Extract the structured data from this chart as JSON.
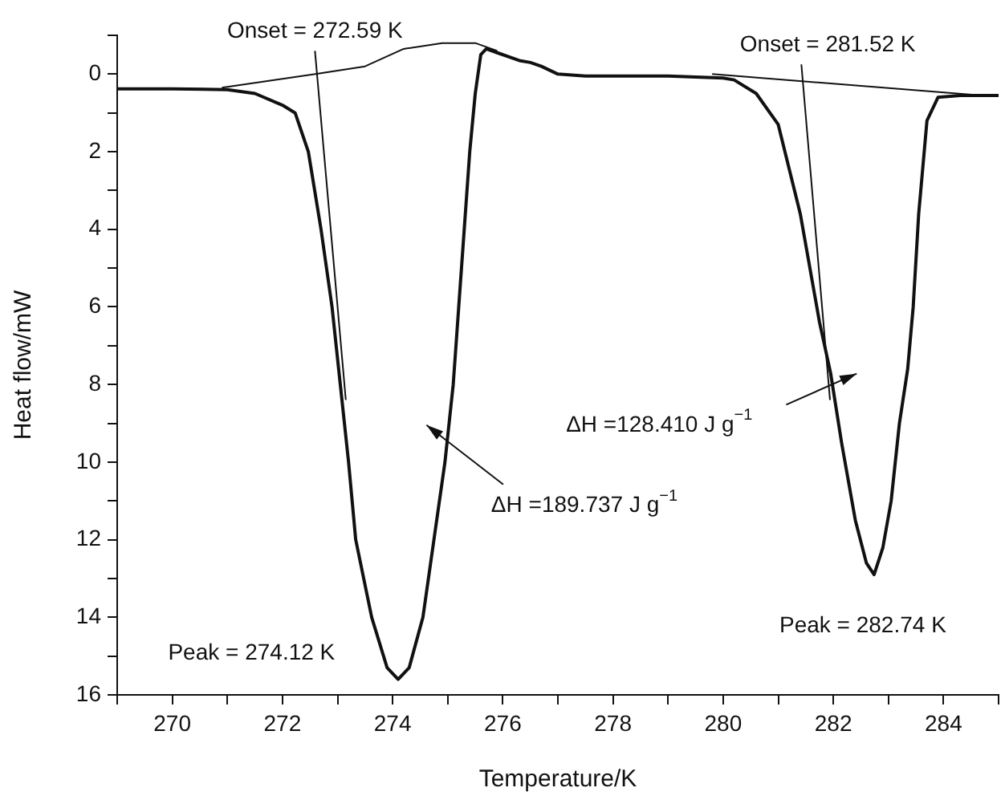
{
  "chart_data": {
    "type": "line",
    "xlabel": "Temperature/K",
    "ylabel": "Heat flow/mW",
    "xlim": [
      269,
      285
    ],
    "xticks": [
      {
        "value": 269,
        "label": null
      },
      270,
      {
        "value": 271,
        "label": null
      },
      272,
      {
        "value": 273,
        "label": null
      },
      274,
      {
        "value": 275,
        "label": null
      },
      276,
      {
        "value": 277,
        "label": null
      },
      278,
      {
        "value": 279,
        "label": null
      },
      280,
      {
        "value": 281,
        "label": null
      },
      282,
      {
        "value": 283,
        "label": null
      },
      284,
      {
        "value": 285,
        "label": null
      }
    ],
    "ylim": [
      16,
      -1
    ],
    "yticks": [
      {
        "value": -1,
        "label": null
      },
      0,
      {
        "value": 1,
        "label": null
      },
      2,
      {
        "value": 3,
        "label": null
      },
      4,
      {
        "value": 5,
        "label": null
      },
      6,
      {
        "value": 7,
        "label": null
      },
      8,
      {
        "value": 9,
        "label": null
      },
      10,
      {
        "value": 11,
        "label": null
      },
      12,
      {
        "value": 13,
        "label": null
      },
      14,
      {
        "value": 15,
        "label": null
      },
      16
    ],
    "marker": "none",
    "line_style": "solid",
    "legend": false,
    "series": [
      {
        "color": "#111111",
        "x": [
          269,
          270,
          271,
          271.5,
          272,
          272.23,
          272.47,
          272.7,
          272.9,
          273.05,
          273.2,
          273.33,
          273.62,
          273.9,
          274.1,
          274.3,
          274.55,
          274.75,
          274.95,
          275.1,
          275.2,
          275.3,
          275.4,
          275.5,
          275.6,
          275.7,
          275.9,
          276.3,
          276.5,
          276.7,
          277,
          277.5,
          278,
          279,
          280,
          280.2,
          280.6,
          281,
          281.4,
          281.75,
          281.95,
          282.15,
          282.4,
          282.6,
          282.74,
          282.9,
          283.05,
          283.2,
          283.35,
          283.45,
          283.55,
          283.7,
          283.9,
          284.3,
          285
        ],
        "values": [
          0.38,
          0.38,
          0.4,
          0.5,
          0.8,
          1,
          2,
          4,
          6,
          8,
          10,
          12,
          14,
          15.3,
          15.6,
          15.3,
          14,
          12,
          10,
          8,
          6,
          4,
          2,
          0.5,
          -0.5,
          -0.65,
          -0.55,
          -0.35,
          -0.3,
          -0.2,
          0,
          0.05,
          0.05,
          0.05,
          0.1,
          0.15,
          0.5,
          1.3,
          3.6,
          6.4,
          7.7,
          9.5,
          11.5,
          12.6,
          12.9,
          12.2,
          11,
          9,
          7.6,
          6,
          3.6,
          1.2,
          0.6,
          0.55,
          0.55
        ]
      },
      {
        "color": "#111111",
        "x": [
          270.9,
          272.6,
          273.5,
          274.2,
          274.9,
          275.5,
          275.9
        ],
        "values": [
          0.35,
          0,
          -0.2,
          -0.65,
          -0.8,
          -0.8,
          -0.6
        ]
      },
      {
        "color": "#111111",
        "x": [
          272.59,
          273.15
        ],
        "values": [
          -0.6,
          8.4
        ]
      },
      {
        "color": "#111111",
        "x": [
          279.8,
          284.7
        ],
        "values": [
          0,
          0.55
        ]
      },
      {
        "color": "#111111",
        "x": [
          281.42,
          281.94
        ],
        "values": [
          -0.25,
          8.4
        ]
      }
    ],
    "annotations": [
      {
        "text": "Onset = 272.59 K",
        "x": 272.59,
        "y": -0.6
      },
      {
        "text": "Onset = 281.52 K",
        "x": 281.52,
        "y": -0.25
      },
      {
        "text": "Peak = 274.12 K",
        "x": 274.12,
        "y": 15.6
      },
      {
        "text": "Peak = 282.74 K",
        "x": 282.74,
        "y": 12.9
      },
      "ΔH =189.737 J g$^{−1}$",
      "ΔH =128.410 J g$^{−1}$"
    ]
  }
}
